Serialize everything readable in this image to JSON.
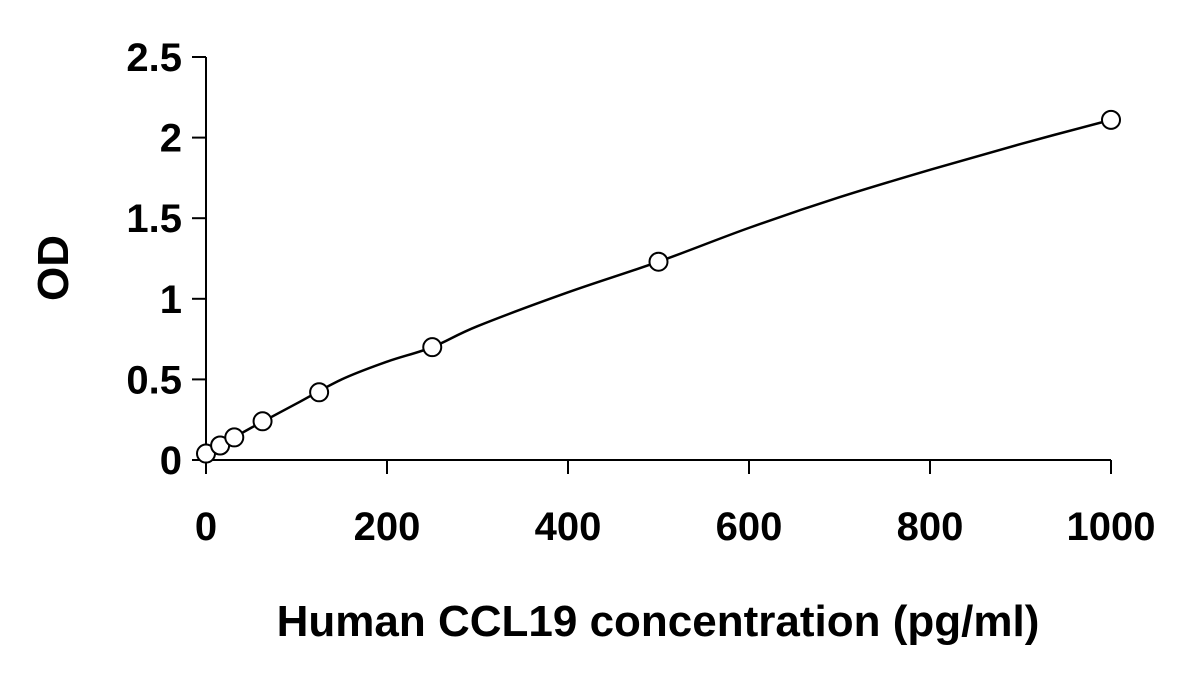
{
  "chart_data": {
    "type": "scatter",
    "title": "",
    "xlabel": "Human CCL19 concentration (pg/ml)",
    "ylabel": "OD",
    "xlim": [
      0,
      1000
    ],
    "ylim": [
      0,
      2.5
    ],
    "x_ticks": [
      0,
      200,
      400,
      600,
      800,
      1000
    ],
    "y_ticks": [
      0,
      0.5,
      1,
      1.5,
      2,
      2.5
    ],
    "x_tick_labels": [
      "0",
      "200",
      "400",
      "600",
      "800",
      "1000"
    ],
    "y_tick_labels": [
      "0",
      "0.5",
      "1",
      "1.5",
      "2",
      "2.5"
    ],
    "grid": false,
    "legend": "none",
    "series": [
      {
        "marker": "open-circle",
        "x": [
          0,
          15.6,
          31.25,
          62.5,
          125,
          250,
          500,
          1000
        ],
        "y": [
          0.04,
          0.09,
          0.14,
          0.24,
          0.42,
          0.7,
          1.23,
          2.11
        ]
      }
    ],
    "fit_curve": {
      "x": [
        0,
        25,
        50,
        100,
        150,
        200,
        250,
        300,
        400,
        500,
        600,
        700,
        800,
        900,
        1000
      ],
      "y": [
        0.04,
        0.12,
        0.2,
        0.35,
        0.5,
        0.61,
        0.7,
        0.83,
        1.04,
        1.23,
        1.44,
        1.63,
        1.8,
        1.96,
        2.11
      ]
    },
    "colors": {
      "axis": "#000000",
      "marker_stroke": "#000000",
      "marker_fill": "#ffffff",
      "curve": "#000000"
    }
  }
}
